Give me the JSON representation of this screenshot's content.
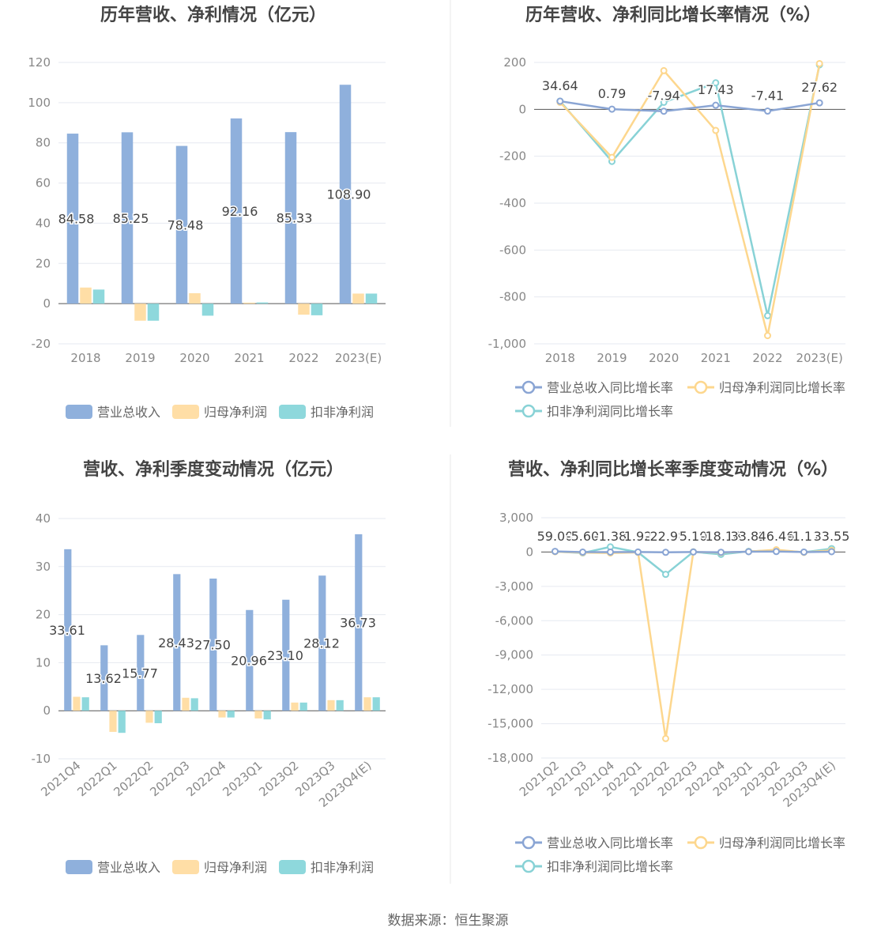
{
  "source_text": "数据来源：恒生聚源",
  "colors": {
    "revenue": "#8fb0dc",
    "net_profit": "#ffdea6",
    "deducted_profit": "#8ed8dc",
    "revenue_line": "#8aa5d4",
    "net_line": "#fdd78e",
    "ded_line": "#88d2d6",
    "grid": "#e6e9f0",
    "axis_text": "#888888",
    "title": "#444444"
  },
  "chart_data": [
    {
      "type": "bar",
      "title": "历年营收、净利情况（亿元）",
      "categories": [
        "2018",
        "2019",
        "2020",
        "2021",
        "2022",
        "2023(E)"
      ],
      "y_ticks": [
        "120",
        "100",
        "80",
        "60",
        "40",
        "20",
        "0",
        "-20"
      ],
      "ylim": [
        -20,
        120
      ],
      "series": [
        {
          "name": "营业总收入",
          "values": [
            84.58,
            85.25,
            78.48,
            92.16,
            85.33,
            108.9
          ],
          "labels": [
            "84.58",
            "85.25",
            "78.48",
            "92.16",
            "85.33",
            "108.90"
          ]
        },
        {
          "name": "归母净利润",
          "values": [
            8.0,
            -8.5,
            5.2,
            0.5,
            -5.5,
            5.0
          ]
        },
        {
          "name": "扣非净利润",
          "values": [
            7.0,
            -8.5,
            -6.0,
            0.6,
            -5.8,
            5.0
          ]
        }
      ]
    },
    {
      "type": "line",
      "title": "历年营收、净利同比增长率情况（%）",
      "categories": [
        "2018",
        "2019",
        "2020",
        "2021",
        "2022",
        "2023(E)"
      ],
      "y_ticks": [
        "200",
        "0",
        "-200",
        "-400",
        "-600",
        "-800",
        "-1,000"
      ],
      "ylim": [
        -1000,
        200
      ],
      "series": [
        {
          "name": "营业总收入同比增长率",
          "values": [
            34.64,
            0.79,
            -7.94,
            17.43,
            -7.41,
            27.62
          ],
          "labels": [
            "34.64",
            "0.79",
            "-7.94",
            "17.43",
            "-7.41",
            "27.62"
          ]
        },
        {
          "name": "归母净利润同比增长率",
          "values": [
            30,
            -205,
            165,
            -90,
            -965,
            195
          ]
        },
        {
          "name": "扣非净利润同比增长率",
          "values": [
            35,
            -222,
            30,
            113,
            -880,
            190
          ]
        }
      ]
    },
    {
      "type": "bar",
      "title": "营收、净利季度变动情况（亿元）",
      "categories": [
        "2021Q4",
        "2022Q1",
        "2022Q2",
        "2022Q3",
        "2022Q4",
        "2023Q1",
        "2023Q2",
        "2023Q3",
        "2023Q4(E)"
      ],
      "y_ticks": [
        "40",
        "30",
        "20",
        "10",
        "0",
        "-10"
      ],
      "ylim": [
        -10,
        40
      ],
      "series": [
        {
          "name": "营业总收入",
          "values": [
            33.61,
            13.62,
            15.77,
            28.43,
            27.5,
            20.96,
            23.1,
            28.12,
            36.73
          ],
          "labels": [
            "33.61",
            "13.62",
            "15.77",
            "28.43",
            "27.50",
            "20.96",
            "23.10",
            "28.12",
            "36.73"
          ]
        },
        {
          "name": "归母净利润",
          "values": [
            2.9,
            -4.4,
            -2.5,
            2.7,
            -1.4,
            -1.6,
            1.7,
            2.2,
            2.8
          ]
        },
        {
          "name": "扣非净利润",
          "values": [
            2.8,
            -4.6,
            -2.6,
            2.6,
            -1.4,
            -1.8,
            1.7,
            2.2,
            2.8
          ]
        }
      ]
    },
    {
      "type": "line",
      "title": "营收、净利同比增长率季度变动情况（%）",
      "categories": [
        "2021Q2",
        "2021Q3",
        "2021Q4",
        "2022Q1",
        "2022Q2",
        "2022Q3",
        "2022Q4",
        "2023Q1",
        "2023Q2",
        "2023Q3",
        "2023Q4(E)"
      ],
      "y_ticks": [
        "3,000",
        "0",
        "-3,000",
        "-6,000",
        "-9,000",
        "-12,000",
        "-15,000",
        "-18,000"
      ],
      "ylim": [
        -18000,
        3000
      ],
      "series": [
        {
          "name": "营业总收入同比增长率",
          "values": [
            59.0,
            -5.6,
            -1.38,
            1.92,
            -22.98,
            5.1,
            -18.18,
            33.82,
            46.46,
            -1.11,
            33.55
          ],
          "labels": [
            "59.00",
            "-5.60",
            "-1.38",
            "1.92",
            "-22.98",
            "5.10",
            "-18.18",
            "33.82",
            "46.46",
            "-1.11",
            "33.55"
          ]
        },
        {
          "name": "归母净利润同比增长率",
          "values": [
            30,
            -50,
            -80,
            -30,
            -16300,
            10,
            -50,
            40,
            200,
            -30,
            150
          ]
        },
        {
          "name": "扣非净利润同比增长率",
          "values": [
            40,
            -80,
            450,
            -20,
            -1950,
            20,
            -200,
            60,
            150,
            -20,
            300
          ]
        }
      ]
    }
  ]
}
